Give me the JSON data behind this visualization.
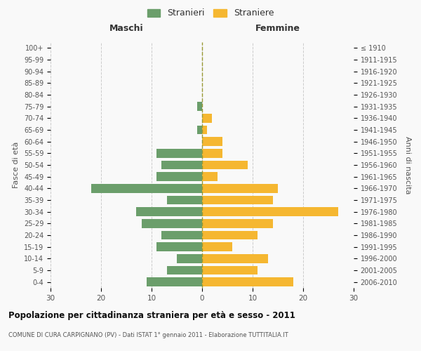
{
  "age_groups": [
    "0-4",
    "5-9",
    "10-14",
    "15-19",
    "20-24",
    "25-29",
    "30-34",
    "35-39",
    "40-44",
    "45-49",
    "50-54",
    "55-59",
    "60-64",
    "65-69",
    "70-74",
    "75-79",
    "80-84",
    "85-89",
    "90-94",
    "95-99",
    "100+"
  ],
  "birth_years": [
    "2006-2010",
    "2001-2005",
    "1996-2000",
    "1991-1995",
    "1986-1990",
    "1981-1985",
    "1976-1980",
    "1971-1975",
    "1966-1970",
    "1961-1965",
    "1956-1960",
    "1951-1955",
    "1946-1950",
    "1941-1945",
    "1936-1940",
    "1931-1935",
    "1926-1930",
    "1921-1925",
    "1916-1920",
    "1911-1915",
    "≤ 1910"
  ],
  "males": [
    11,
    7,
    5,
    9,
    8,
    12,
    13,
    7,
    22,
    9,
    8,
    9,
    0,
    1,
    0,
    1,
    0,
    0,
    0,
    0,
    0
  ],
  "females": [
    18,
    11,
    13,
    6,
    11,
    14,
    27,
    14,
    15,
    3,
    9,
    4,
    4,
    1,
    2,
    0,
    0,
    0,
    0,
    0,
    0
  ],
  "male_color": "#6b9e6b",
  "female_color": "#f5b731",
  "background_color": "#f9f9f9",
  "grid_color": "#cccccc",
  "center_line_color": "#999933",
  "title": "Popolazione per cittadinanza straniera per età e sesso - 2011",
  "subtitle": "COMUNE DI CURA CARPIGNANO (PV) - Dati ISTAT 1° gennaio 2011 - Elaborazione TUTTITALIA.IT",
  "ylabel_left": "Fasce di età",
  "ylabel_right": "Anni di nascita",
  "xlabel_left": "Maschi",
  "xlabel_right": "Femmine",
  "legend_males": "Stranieri",
  "legend_females": "Straniere",
  "xlim": 30
}
